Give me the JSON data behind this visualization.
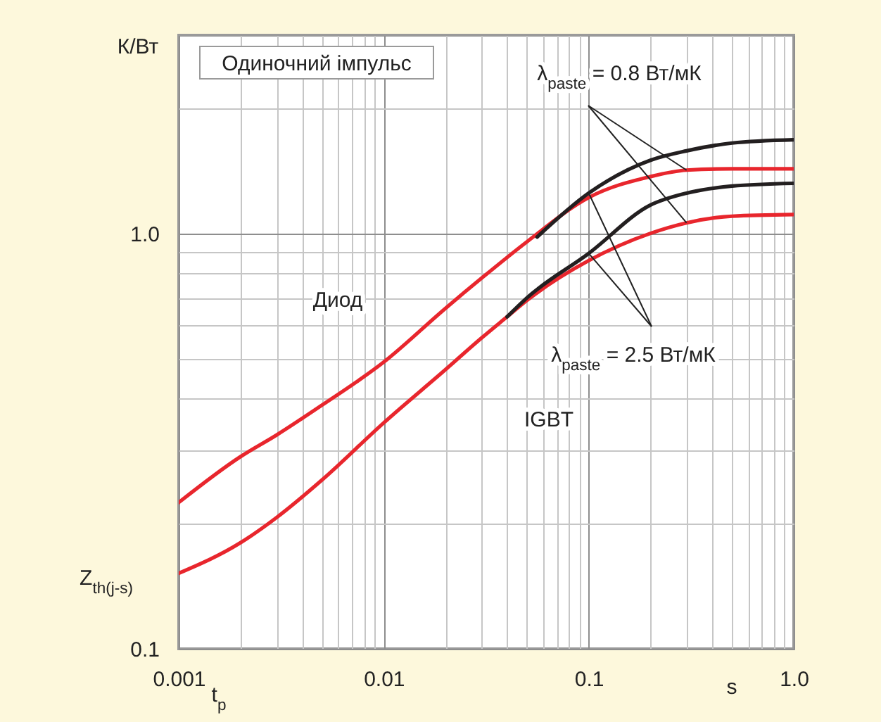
{
  "chart_data": {
    "type": "line",
    "xlabel": "t$_{p}$",
    "ylabel": "Z$_{th(j-s)}$",
    "log": "xy",
    "grid": true,
    "xlim": [
      0.001,
      1
    ],
    "ylim": [
      0.1,
      3
    ],
    "xticks": [
      0.001,
      {
        "value": 0.002,
        "label": null
      },
      {
        "value": 0.003,
        "label": null
      },
      {
        "value": 0.004,
        "label": null
      },
      {
        "value": 0.005,
        "label": null
      },
      {
        "value": 0.006,
        "label": null
      },
      {
        "value": 0.007,
        "label": null
      },
      {
        "value": 0.008,
        "label": null
      },
      {
        "value": 0.009,
        "label": null
      },
      0.01,
      {
        "value": 0.02,
        "label": null
      },
      {
        "value": 0.03,
        "label": null
      },
      {
        "value": 0.04,
        "label": null
      },
      {
        "value": 0.05,
        "label": null
      },
      {
        "value": 0.06,
        "label": null
      },
      {
        "value": 0.07,
        "label": null
      },
      {
        "value": 0.08,
        "label": null
      },
      {
        "value": 0.09,
        "label": null
      },
      0.1,
      {
        "value": 0.2,
        "label": null
      },
      {
        "value": 0.3,
        "label": null
      },
      {
        "value": 0.4,
        "label": null
      },
      {
        "value": 0.5,
        "label": null
      },
      {
        "value": 0.6,
        "label": null
      },
      {
        "value": 0.7,
        "label": null
      },
      {
        "value": 0.8,
        "label": null
      },
      {
        "value": 0.9,
        "label": null
      },
      {
        "value": 1,
        "label": "1.0"
      }
    ],
    "yticks": [
      0.1,
      {
        "value": 0.2,
        "label": null
      },
      {
        "value": 0.3,
        "label": null
      },
      {
        "value": 0.4,
        "label": null
      },
      {
        "value": 0.5,
        "label": null
      },
      {
        "value": 0.6,
        "label": null
      },
      {
        "value": 0.7,
        "label": null
      },
      {
        "value": 0.8,
        "label": null
      },
      {
        "value": 0.9,
        "label": null
      },
      {
        "value": 1,
        "label": "1.0"
      },
      {
        "value": 2,
        "label": null
      }
    ],
    "series": [
      {
        "color": "#e8262d",
        "x": [
          0.001,
          0.002,
          0.003,
          0.005,
          0.01,
          0.02,
          0.03,
          0.05,
          0.1,
          0.2,
          0.3,
          0.5,
          1
        ],
        "values": [
          0.225,
          0.29,
          0.327,
          0.386,
          0.49,
          0.66,
          0.78,
          0.955,
          1.22,
          1.37,
          1.42,
          1.43,
          1.43
        ]
      },
      {
        "color": "#231f20",
        "x": [
          0.056,
          0.1,
          0.2,
          0.3,
          0.5,
          1
        ],
        "values": [
          0.98,
          1.25,
          1.5,
          1.58,
          1.65,
          1.68
        ]
      },
      {
        "color": "#e8262d",
        "x": [
          0.001,
          0.002,
          0.003,
          0.005,
          0.01,
          0.02,
          0.03,
          0.04,
          0.05,
          0.1,
          0.2,
          0.3,
          0.5,
          1
        ],
        "values": [
          0.152,
          0.18,
          0.207,
          0.255,
          0.35,
          0.47,
          0.56,
          0.63,
          0.69,
          0.86,
          1.0,
          1.06,
          1.1,
          1.11
        ]
      },
      {
        "color": "#231f20",
        "x": [
          0.04,
          0.05,
          0.1,
          0.2,
          0.3,
          0.5,
          1
        ],
        "values": [
          0.63,
          0.7,
          0.895,
          1.17,
          1.25,
          1.3,
          1.32
        ]
      }
    ],
    "annotations": [
      "Одиночний імпульс",
      {
        "text": "λ$_{paste}$ = 0.8 Вт/мК",
        "x": 0.3,
        "y": 1.42
      },
      "Диод",
      {
        "text": "λ$_{paste}$ = 2.5 Вт/мК",
        "x": 0.1,
        "y": 1.25
      },
      "IGBT",
      "К/Вт",
      "s"
    ]
  }
}
